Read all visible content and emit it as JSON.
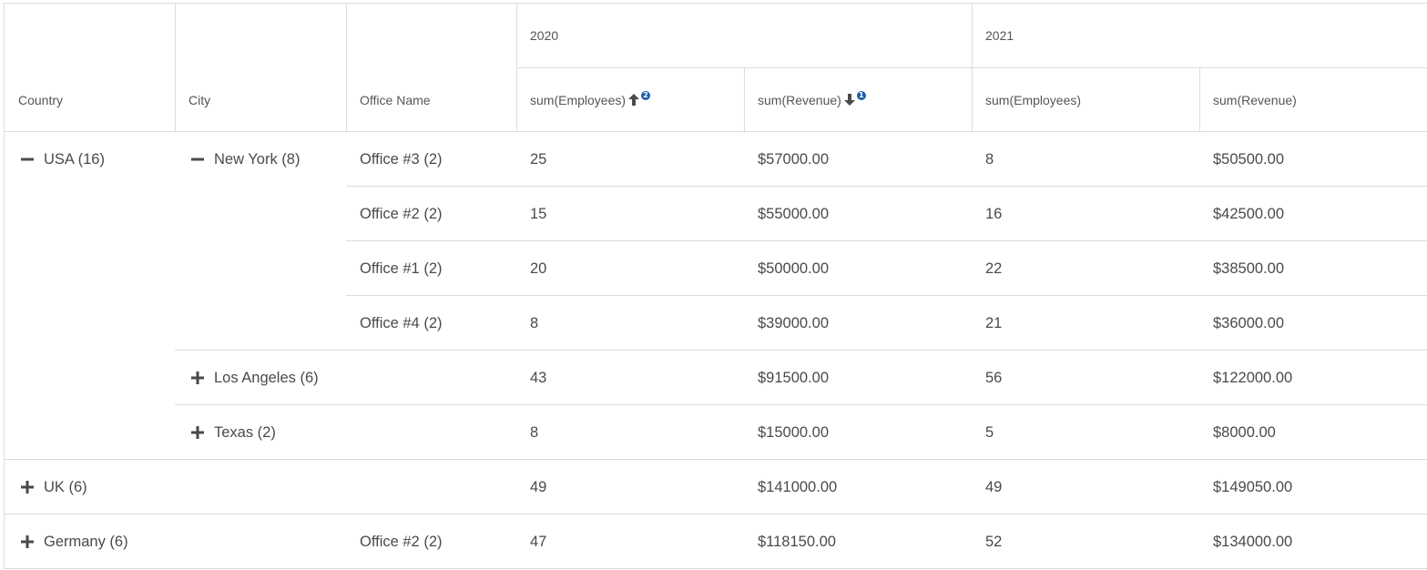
{
  "header": {
    "years": [
      "2020",
      "2021"
    ],
    "row_headers": [
      "Country",
      "City",
      "Office Name"
    ],
    "measures": [
      {
        "label": "sum(Employees)",
        "sort": "asc",
        "priority": "2"
      },
      {
        "label": "sum(Revenue)",
        "sort": "desc",
        "priority": "1"
      },
      {
        "label": "sum(Employees)"
      },
      {
        "label": "sum(Revenue)"
      }
    ]
  },
  "rows": [
    {
      "country": "USA (16)",
      "country_toggle": "minus",
      "city": "New York (8)",
      "city_toggle": "minus",
      "office": "Office #3 (2)",
      "values": [
        "25",
        "$57000.00",
        "8",
        "$50500.00"
      ]
    },
    {
      "country": "",
      "city": "",
      "office": "Office #2 (2)",
      "values": [
        "15",
        "$55000.00",
        "16",
        "$42500.00"
      ]
    },
    {
      "country": "",
      "city": "",
      "office": "Office #1 (2)",
      "values": [
        "20",
        "$50000.00",
        "22",
        "$38500.00"
      ]
    },
    {
      "country": "",
      "city": "",
      "office": "Office #4 (2)",
      "values": [
        "8",
        "$39000.00",
        "21",
        "$36000.00"
      ]
    },
    {
      "country": "",
      "city": "Los Angeles (6)",
      "city_toggle": "plus",
      "office": "",
      "values": [
        "43",
        "$91500.00",
        "56",
        "$122000.00"
      ]
    },
    {
      "country": "",
      "city": "Texas (2)",
      "city_toggle": "plus",
      "office": "",
      "values": [
        "8",
        "$15000.00",
        "5",
        "$8000.00"
      ]
    },
    {
      "country": "UK (6)",
      "country_toggle": "plus",
      "city": "",
      "office": "",
      "values": [
        "49",
        "$141000.00",
        "49",
        "$149050.00"
      ]
    },
    {
      "country": "Germany (6)",
      "country_toggle": "plus",
      "city": "",
      "office": "Office #2 (2)",
      "values": [
        "47",
        "$118150.00",
        "52",
        "$134000.00"
      ]
    }
  ]
}
